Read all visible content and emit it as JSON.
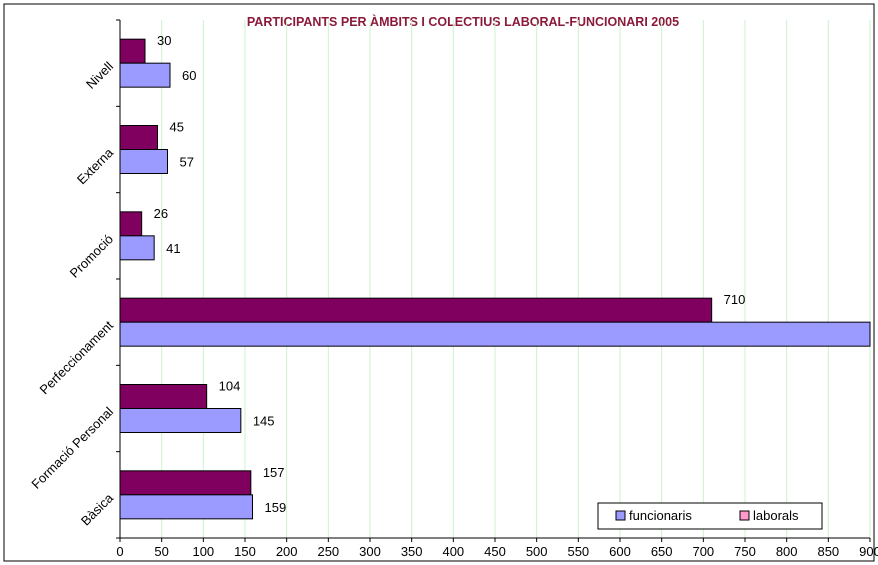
{
  "chart_data": {
    "type": "bar",
    "orientation": "horizontal",
    "title": "PARTICIPANTS PER ÀMBITS I COLECTIUS LABORAL-FUNCIONARI 2005",
    "title_color": "#8b1a3a",
    "categories": [
      "Bàsica",
      "Formació Personal",
      "Perfeccionament",
      "Promoció",
      "Externa",
      "Nivell"
    ],
    "series": [
      {
        "name": "funcionaris",
        "color": "#9a9aff",
        "values": [
          159,
          145,
          900,
          41,
          57,
          60
        ],
        "labels": [
          "159",
          "145",
          "",
          "41",
          "57",
          "60"
        ]
      },
      {
        "name": "laborals",
        "color": "#800060",
        "legend_color": "#ff99cc",
        "values": [
          157,
          104,
          710,
          26,
          45,
          30
        ],
        "labels": [
          "157",
          "104",
          "710",
          "26",
          "45",
          "30"
        ]
      }
    ],
    "xlim": [
      0,
      900
    ],
    "x_ticks": [
      "0",
      "50",
      "100",
      "150",
      "200",
      "250",
      "300",
      "350",
      "400",
      "450",
      "500",
      "550",
      "600",
      "650",
      "700",
      "750",
      "800",
      "850",
      "900"
    ],
    "grid": "vertical",
    "grid_color": "#ccf2cc",
    "legend_position": "bottom-right"
  }
}
